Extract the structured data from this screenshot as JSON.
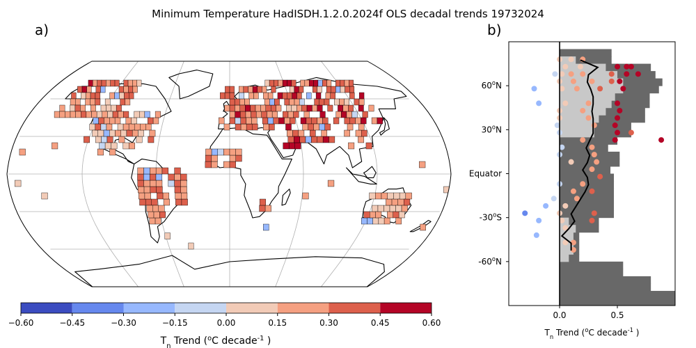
{
  "title": "Minimum Temperature HadISDH.1.2.0.2024f OLS decadal trends 19732024",
  "panel_a_label": "a)",
  "panel_b_label": "b)",
  "colors": {
    "colorbar": [
      "#3b4cc0",
      "#6688ee",
      "#97b8fe",
      "#c5d6f2",
      "#f2cbb7",
      "#f5a081",
      "#dd604c",
      "#b40426"
    ],
    "map_frame": "#000000",
    "graticule": "#b0b0b0",
    "hist_all": "#686868",
    "hist_sub": "#c8c8c8",
    "zonal_line": "#000000"
  },
  "colorbar": {
    "ticks": [
      "-0.60",
      "-0.45",
      "-0.30",
      "-0.15",
      "0.00",
      "0.15",
      "0.30",
      "0.45",
      "0.60"
    ],
    "label": "T$_n$ Trend ($^o$C decade$^{-1}$ )"
  },
  "chart_data": [
    {
      "type": "heatmap",
      "panel": "a)",
      "projection": "Robinson (world map, graticule every 30°)",
      "colorbar_range": [
        -0.6,
        0.6
      ],
      "colorbar_step": 0.15,
      "note": "Gridded land trends shown as 5°x5° boxes colored by trend value"
    },
    {
      "type": "scatter",
      "panel": "b)",
      "ylabel_ticks": [
        "60$^o$N",
        "30$^o$N",
        "Equator",
        "-30$^o$S",
        "-60$^o$N"
      ],
      "ytick_values": [
        60,
        30,
        0,
        -30,
        -60
      ],
      "xticks": [
        "0.0",
        "0.5"
      ],
      "xtick_values": [
        0.0,
        0.5
      ],
      "xlabel": "T$_n$ Trend ($^o$C decade$^{-1}$ )",
      "xlim": [
        -0.44,
        1.0
      ],
      "ylim": [
        -90,
        90
      ],
      "hist_all_coverage": [
        {
          "lat": -87.5,
          "value": 1.0
        },
        {
          "lat": -82.5,
          "value": 1.0
        },
        {
          "lat": -77.5,
          "value": 0.79
        },
        {
          "lat": -72.5,
          "value": 0.79
        },
        {
          "lat": -67.5,
          "value": 0.55
        },
        {
          "lat": -62.5,
          "value": 0.55
        },
        {
          "lat": -57.5,
          "value": 0.17
        },
        {
          "lat": -52.5,
          "value": 0.17
        },
        {
          "lat": -47.5,
          "value": 0.17
        },
        {
          "lat": -42.5,
          "value": 0.17
        },
        {
          "lat": -37.5,
          "value": 0.34
        },
        {
          "lat": -32.5,
          "value": 0.34
        },
        {
          "lat": -27.5,
          "value": 0.47
        },
        {
          "lat": -22.5,
          "value": 0.47
        },
        {
          "lat": -17.5,
          "value": 0.47
        },
        {
          "lat": -12.5,
          "value": 0.47
        },
        {
          "lat": -7.5,
          "value": 0.47
        },
        {
          "lat": -2.5,
          "value": 0.47
        },
        {
          "lat": 2.5,
          "value": 0.44
        },
        {
          "lat": 7.5,
          "value": 0.52
        },
        {
          "lat": 12.5,
          "value": 0.52
        },
        {
          "lat": 17.5,
          "value": 0.42
        },
        {
          "lat": 22.5,
          "value": 0.5
        },
        {
          "lat": 27.5,
          "value": 0.62
        },
        {
          "lat": 32.5,
          "value": 0.62
        },
        {
          "lat": 37.5,
          "value": 0.74
        },
        {
          "lat": 42.5,
          "value": 0.74
        },
        {
          "lat": 47.5,
          "value": 0.78
        },
        {
          "lat": 52.5,
          "value": 0.78
        },
        {
          "lat": 57.5,
          "value": 0.86
        },
        {
          "lat": 62.5,
          "value": 0.89
        },
        {
          "lat": 67.5,
          "value": 0.83
        },
        {
          "lat": 72.5,
          "value": 0.79
        },
        {
          "lat": 77.5,
          "value": 0.45
        },
        {
          "lat": 82.5,
          "value": 0.45
        },
        {
          "lat": 87.5,
          "value": 0.0
        }
      ],
      "hist_sub_coverage": [
        {
          "lat": -57.5,
          "value": 0.08
        },
        {
          "lat": -52.5,
          "value": 0.12
        },
        {
          "lat": -47.5,
          "value": 0.12
        },
        {
          "lat": -42.5,
          "value": 0.12
        },
        {
          "lat": -37.5,
          "value": 0.14
        },
        {
          "lat": -32.5,
          "value": 0.08
        },
        {
          "lat": 27.5,
          "value": 0.3
        },
        {
          "lat": 32.5,
          "value": 0.3
        },
        {
          "lat": 37.5,
          "value": 0.34
        },
        {
          "lat": 42.5,
          "value": 0.4
        },
        {
          "lat": 47.5,
          "value": 0.45
        },
        {
          "lat": 52.5,
          "value": 0.48
        },
        {
          "lat": 57.5,
          "value": 0.55
        },
        {
          "lat": 62.5,
          "value": 0.55
        },
        {
          "lat": 67.5,
          "value": 0.5
        },
        {
          "lat": 72.5,
          "value": 0.4
        },
        {
          "lat": 77.5,
          "value": 0.14
        }
      ],
      "zonal_mean_line": {
        "lat": [
          -52.5,
          -47.5,
          -42.5,
          -37.5,
          -32.5,
          -27.5,
          -22.5,
          -17.5,
          -12.5,
          -7.5,
          -2.5,
          2.5,
          7.5,
          12.5,
          17.5,
          22.5,
          27.5,
          32.5,
          37.5,
          42.5,
          47.5,
          52.5,
          57.5,
          62.5,
          67.5,
          72.5,
          77.5
        ],
        "value": [
          0.1,
          0.1,
          0.02,
          0.08,
          0.13,
          0.1,
          0.14,
          0.18,
          0.22,
          0.25,
          0.24,
          0.2,
          0.24,
          0.26,
          0.23,
          0.26,
          0.29,
          0.29,
          0.29,
          0.28,
          0.29,
          0.29,
          0.27,
          0.24,
          0.25,
          0.33,
          0.18
        ]
      },
      "points": [
        {
          "lat": 78,
          "value": 0.0,
          "c": 5
        },
        {
          "lat": 78,
          "value": 0.1,
          "c": 5
        },
        {
          "lat": 78,
          "value": 0.2,
          "c": 6
        },
        {
          "lat": 73,
          "value": 0.05,
          "c": 5
        },
        {
          "lat": 73,
          "value": 0.18,
          "c": 5
        },
        {
          "lat": 73,
          "value": 0.5,
          "c": 8
        },
        {
          "lat": 73,
          "value": 0.58,
          "c": 8
        },
        {
          "lat": 73,
          "value": 0.62,
          "c": 8
        },
        {
          "lat": 68,
          "value": -0.04,
          "c": 4
        },
        {
          "lat": 68,
          "value": 0.02,
          "c": 5
        },
        {
          "lat": 68,
          "value": 0.1,
          "c": 6
        },
        {
          "lat": 68,
          "value": 0.2,
          "c": 6
        },
        {
          "lat": 68,
          "value": 0.45,
          "c": 7
        },
        {
          "lat": 68,
          "value": 0.58,
          "c": 8
        },
        {
          "lat": 68,
          "value": 0.68,
          "c": 8
        },
        {
          "lat": 63,
          "value": 0.0,
          "c": 5
        },
        {
          "lat": 63,
          "value": 0.12,
          "c": 6
        },
        {
          "lat": 63,
          "value": 0.28,
          "c": 6
        },
        {
          "lat": 63,
          "value": 0.45,
          "c": 7
        },
        {
          "lat": 63,
          "value": 0.52,
          "c": 8
        },
        {
          "lat": 58,
          "value": -0.22,
          "c": 3
        },
        {
          "lat": 58,
          "value": 0.02,
          "c": 5
        },
        {
          "lat": 58,
          "value": 0.15,
          "c": 6
        },
        {
          "lat": 58,
          "value": 0.35,
          "c": 7
        },
        {
          "lat": 58,
          "value": 0.55,
          "c": 8
        },
        {
          "lat": 48,
          "value": -0.18,
          "c": 3
        },
        {
          "lat": 48,
          "value": 0.05,
          "c": 5
        },
        {
          "lat": 48,
          "value": 0.25,
          "c": 6
        },
        {
          "lat": 48,
          "value": 0.5,
          "c": 8
        },
        {
          "lat": 43,
          "value": 0.0,
          "c": 5
        },
        {
          "lat": 43,
          "value": 0.2,
          "c": 6
        },
        {
          "lat": 43,
          "value": 0.52,
          "c": 8
        },
        {
          "lat": 38,
          "value": 0.0,
          "c": 5
        },
        {
          "lat": 38,
          "value": 0.25,
          "c": 6
        },
        {
          "lat": 38,
          "value": 0.5,
          "c": 8
        },
        {
          "lat": 33,
          "value": -0.02,
          "c": 4
        },
        {
          "lat": 33,
          "value": 0.3,
          "c": 6
        },
        {
          "lat": 33,
          "value": 0.48,
          "c": 8
        },
        {
          "lat": 28,
          "value": 0.0,
          "c": 4
        },
        {
          "lat": 28,
          "value": 0.5,
          "c": 8
        },
        {
          "lat": 28,
          "value": 0.62,
          "c": 7
        },
        {
          "lat": 23,
          "value": 0.2,
          "c": 6
        },
        {
          "lat": 23,
          "value": 0.48,
          "c": 8
        },
        {
          "lat": 23,
          "value": 0.88,
          "c": 8
        },
        {
          "lat": 18,
          "value": 0.02,
          "c": 4
        },
        {
          "lat": 18,
          "value": 0.28,
          "c": 6
        },
        {
          "lat": 13,
          "value": 0.0,
          "c": 4
        },
        {
          "lat": 13,
          "value": 0.3,
          "c": 6
        },
        {
          "lat": 8,
          "value": 0.1,
          "c": 5
        },
        {
          "lat": 8,
          "value": 0.32,
          "c": 6
        },
        {
          "lat": 3,
          "value": 0.28,
          "c": 6
        },
        {
          "lat": -2,
          "value": 0.35,
          "c": 7
        },
        {
          "lat": -7,
          "value": 0.0,
          "c": 4
        },
        {
          "lat": -7,
          "value": 0.2,
          "c": 6
        },
        {
          "lat": -12,
          "value": 0.12,
          "c": 6
        },
        {
          "lat": -12,
          "value": 0.28,
          "c": 7
        },
        {
          "lat": -17,
          "value": -0.05,
          "c": 4
        },
        {
          "lat": -17,
          "value": 0.15,
          "c": 6
        },
        {
          "lat": -22,
          "value": -0.12,
          "c": 3
        },
        {
          "lat": -22,
          "value": 0.05,
          "c": 5
        },
        {
          "lat": -27,
          "value": -0.3,
          "c": 2
        },
        {
          "lat": -27,
          "value": 0.0,
          "c": 5
        },
        {
          "lat": -27,
          "value": 0.3,
          "c": 7
        },
        {
          "lat": -32,
          "value": -0.18,
          "c": 3
        },
        {
          "lat": -32,
          "value": 0.02,
          "c": 5
        },
        {
          "lat": -32,
          "value": 0.28,
          "c": 7
        },
        {
          "lat": -37,
          "value": 0.05,
          "c": 5
        },
        {
          "lat": -42,
          "value": -0.2,
          "c": 3
        },
        {
          "lat": -47,
          "value": 0.05,
          "c": 5
        },
        {
          "lat": -47,
          "value": 0.12,
          "c": 6
        },
        {
          "lat": -52,
          "value": 0.12,
          "c": 6
        }
      ]
    }
  ]
}
